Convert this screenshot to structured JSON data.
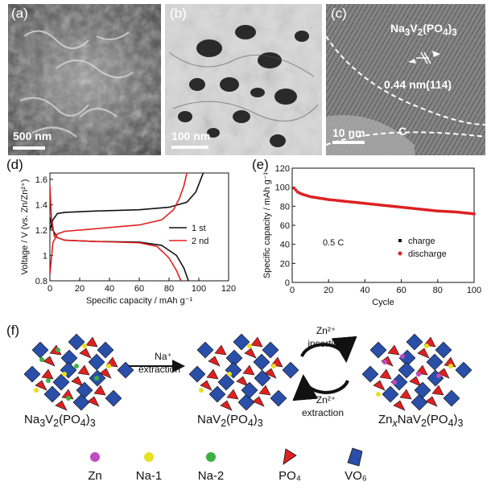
{
  "panel_a": {
    "label": "(a)",
    "scale_bar": "500 nm"
  },
  "panel_b": {
    "label": "(b)",
    "scale_bar": "100 nm"
  },
  "panel_c": {
    "label": "(c)",
    "scale_bar": "10 nm",
    "compound": "Na3V2(PO4)3",
    "spacing": "0.44 nm(114)",
    "layer": "C"
  },
  "panel_d": {
    "label": "(d)"
  },
  "panel_e": {
    "label": "(e)"
  },
  "panel_f": {
    "label": "(f)",
    "step1_line1": "Na⁺",
    "step1_line2": "extraction",
    "step2_line1": "Zn²⁺",
    "step2_line2": "insertion",
    "step3_line1": "Zn²⁺",
    "step3_line2": "extraction",
    "structure1": "Na3V2(PO4)3",
    "structure2": "NaV2(PO4)3",
    "structure3": "ZnxNaV2(PO4)3"
  },
  "legend": {
    "items": [
      {
        "name": "Zn",
        "color": "#c04cc0"
      },
      {
        "name": "Na-1",
        "color": "#e8e020"
      },
      {
        "name": "Na-2",
        "color": "#3cb043"
      },
      {
        "name": "PO₄",
        "color": "#e02020"
      },
      {
        "name": "VO₆",
        "color": "#2a4fa8"
      }
    ]
  },
  "chart_data": [
    {
      "type": "line",
      "xlabel": "Specific capacity / mAh g⁻¹",
      "ylabel": "Voltage / V (vs. Zn/Zn²⁺)",
      "xlim": [
        0,
        120
      ],
      "ylim": [
        0.8,
        1.65
      ],
      "xticks": [
        0,
        20,
        40,
        60,
        80,
        100,
        120
      ],
      "yticks": [
        0.8,
        1.0,
        1.2,
        1.4,
        1.6
      ],
      "legend_position": "right",
      "series": [
        {
          "name": "1 st",
          "color": "#111111",
          "charge": [
            [
              0,
              1.2
            ],
            [
              2,
              1.28
            ],
            [
              5,
              1.33
            ],
            [
              10,
              1.34
            ],
            [
              30,
              1.35
            ],
            [
              60,
              1.36
            ],
            [
              80,
              1.38
            ],
            [
              92,
              1.42
            ],
            [
              98,
              1.5
            ],
            [
              103,
              1.65
            ]
          ],
          "discharge": [
            [
              0,
              1.3
            ],
            [
              2,
              1.2
            ],
            [
              5,
              1.14
            ],
            [
              10,
              1.12
            ],
            [
              30,
              1.11
            ],
            [
              60,
              1.105
            ],
            [
              75,
              1.08
            ],
            [
              85,
              1.0
            ],
            [
              90,
              0.9
            ],
            [
              93,
              0.8
            ]
          ]
        },
        {
          "name": "2 nd",
          "color": "#e02020",
          "charge": [
            [
              0,
              0.85
            ],
            [
              2,
              1.1
            ],
            [
              5,
              1.17
            ],
            [
              10,
              1.19
            ],
            [
              30,
              1.21
            ],
            [
              60,
              1.24
            ],
            [
              75,
              1.28
            ],
            [
              83,
              1.36
            ],
            [
              87,
              1.45
            ],
            [
              90,
              1.55
            ],
            [
              92,
              1.65
            ]
          ],
          "discharge": [
            [
              0,
              1.55
            ],
            [
              1,
              1.3
            ],
            [
              3,
              1.15
            ],
            [
              10,
              1.12
            ],
            [
              30,
              1.11
            ],
            [
              60,
              1.1
            ],
            [
              72,
              1.07
            ],
            [
              80,
              0.98
            ],
            [
              85,
              0.88
            ],
            [
              88,
              0.8
            ]
          ]
        }
      ]
    },
    {
      "type": "scatter",
      "xlabel": "Cycle",
      "ylabel": "Specific capacity / mAh g⁻¹",
      "xlim": [
        0,
        100
      ],
      "ylim": [
        0,
        120
      ],
      "xticks": [
        0,
        20,
        40,
        60,
        80,
        100
      ],
      "yticks": [
        0,
        20,
        40,
        60,
        80,
        100,
        120
      ],
      "annotation": "0.5 C",
      "legend_position": "bottom-right",
      "series": [
        {
          "name": "charge",
          "color": "#111111",
          "points": [
            [
              1,
              99
            ],
            [
              2,
              97
            ],
            [
              3,
              95
            ],
            [
              5,
              93
            ],
            [
              10,
              90
            ],
            [
              20,
              87
            ],
            [
              30,
              85
            ],
            [
              40,
              83
            ],
            [
              50,
              81
            ],
            [
              60,
              79
            ],
            [
              70,
              77
            ],
            [
              80,
              75
            ],
            [
              90,
              74
            ],
            [
              100,
              72
            ]
          ]
        },
        {
          "name": "discharge",
          "color": "#e02020",
          "points": [
            [
              1,
              99
            ],
            [
              2,
              97
            ],
            [
              3,
              95
            ],
            [
              5,
              93
            ],
            [
              10,
              90
            ],
            [
              20,
              87
            ],
            [
              30,
              85
            ],
            [
              40,
              83
            ],
            [
              50,
              81
            ],
            [
              60,
              79
            ],
            [
              70,
              77
            ],
            [
              80,
              75
            ],
            [
              90,
              74
            ],
            [
              100,
              72
            ]
          ]
        }
      ]
    }
  ]
}
